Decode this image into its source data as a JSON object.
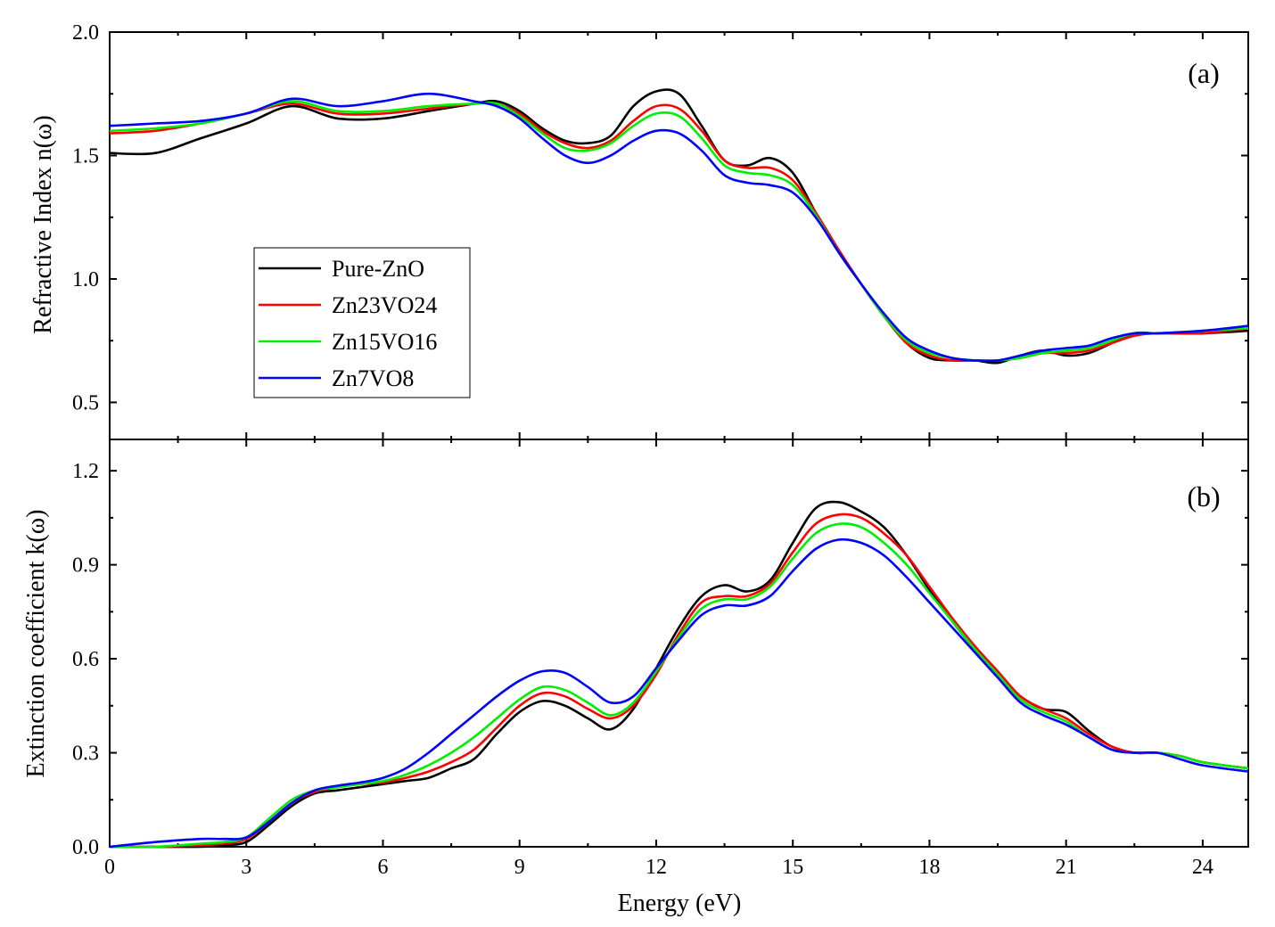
{
  "chart_data": [
    {
      "panel_label": "(a)",
      "type": "line",
      "xlabel": "",
      "ylabel": "Refractive Index n(ω)",
      "xlim": [
        0,
        25
      ],
      "ylim": [
        0.35,
        2.0
      ],
      "y_ticks": [
        "0.5",
        "1.0",
        "1.5",
        "2.0"
      ],
      "y_tick_values": [
        0.5,
        1.0,
        1.5,
        2.0
      ],
      "legend_placement": "center-left",
      "grid": false,
      "series": [
        {
          "name": "Pure-ZnO",
          "color": "#000000",
          "x": [
            0,
            1,
            2,
            3,
            4,
            5,
            6,
            7,
            8,
            8.5,
            9,
            9.5,
            10,
            10.5,
            11,
            11.5,
            12,
            12.5,
            13,
            13.5,
            14,
            14.5,
            15,
            15.5,
            16,
            16.5,
            17,
            17.5,
            18,
            18.5,
            19,
            19.5,
            20,
            20.5,
            21,
            21.5,
            22,
            22.5,
            23,
            24,
            25
          ],
          "y": [
            1.51,
            1.51,
            1.57,
            1.63,
            1.7,
            1.65,
            1.65,
            1.68,
            1.71,
            1.72,
            1.68,
            1.61,
            1.56,
            1.55,
            1.58,
            1.7,
            1.76,
            1.75,
            1.62,
            1.48,
            1.46,
            1.49,
            1.43,
            1.27,
            1.11,
            0.98,
            0.85,
            0.74,
            0.68,
            0.67,
            0.67,
            0.66,
            0.69,
            0.71,
            0.69,
            0.7,
            0.74,
            0.78,
            0.78,
            0.78,
            0.79
          ]
        },
        {
          "name": "Zn23VO24",
          "color": "#ff0000",
          "x": [
            0,
            1,
            2,
            3,
            4,
            5,
            6,
            7,
            8,
            8.5,
            9,
            9.5,
            10,
            10.5,
            11,
            11.5,
            12,
            12.5,
            13,
            13.5,
            14,
            14.5,
            15,
            15.5,
            16,
            16.5,
            17,
            17.5,
            18,
            18.5,
            19,
            19.5,
            20,
            20.5,
            21,
            21.5,
            22,
            22.5,
            23,
            24,
            25
          ],
          "y": [
            1.59,
            1.6,
            1.63,
            1.67,
            1.71,
            1.67,
            1.67,
            1.69,
            1.71,
            1.71,
            1.67,
            1.6,
            1.55,
            1.53,
            1.56,
            1.64,
            1.7,
            1.69,
            1.6,
            1.48,
            1.45,
            1.45,
            1.4,
            1.27,
            1.12,
            0.98,
            0.85,
            0.74,
            0.69,
            0.67,
            0.67,
            0.67,
            0.68,
            0.7,
            0.7,
            0.71,
            0.74,
            0.77,
            0.78,
            0.78,
            0.8
          ]
        },
        {
          "name": "Zn15VO16",
          "color": "#00ee00",
          "x": [
            0,
            1,
            2,
            3,
            4,
            5,
            6,
            7,
            8,
            8.5,
            9,
            9.5,
            10,
            10.5,
            11,
            11.5,
            12,
            12.5,
            13,
            13.5,
            14,
            14.5,
            15,
            15.5,
            16,
            16.5,
            17,
            17.5,
            18,
            18.5,
            19,
            19.5,
            20,
            20.5,
            21,
            21.5,
            22,
            22.5,
            23,
            24,
            25
          ],
          "y": [
            1.6,
            1.61,
            1.63,
            1.67,
            1.72,
            1.68,
            1.68,
            1.7,
            1.71,
            1.71,
            1.66,
            1.59,
            1.53,
            1.52,
            1.55,
            1.62,
            1.67,
            1.66,
            1.57,
            1.46,
            1.43,
            1.42,
            1.38,
            1.26,
            1.11,
            0.98,
            0.85,
            0.75,
            0.7,
            0.68,
            0.67,
            0.67,
            0.68,
            0.7,
            0.71,
            0.72,
            0.75,
            0.78,
            0.78,
            0.79,
            0.8
          ]
        },
        {
          "name": "Zn7VO8",
          "color": "#0000ff",
          "x": [
            0,
            1,
            2,
            3,
            4,
            5,
            6,
            7,
            8,
            8.5,
            9,
            9.5,
            10,
            10.5,
            11,
            11.5,
            12,
            12.5,
            13,
            13.5,
            14,
            14.5,
            15,
            15.5,
            16,
            16.5,
            17,
            17.5,
            18,
            18.5,
            19,
            19.5,
            20,
            20.5,
            21,
            21.5,
            22,
            22.5,
            23,
            24,
            25
          ],
          "y": [
            1.62,
            1.63,
            1.64,
            1.67,
            1.73,
            1.7,
            1.72,
            1.75,
            1.72,
            1.7,
            1.65,
            1.57,
            1.5,
            1.47,
            1.5,
            1.56,
            1.6,
            1.59,
            1.52,
            1.42,
            1.39,
            1.38,
            1.35,
            1.25,
            1.11,
            0.98,
            0.86,
            0.76,
            0.71,
            0.68,
            0.67,
            0.67,
            0.69,
            0.71,
            0.72,
            0.73,
            0.76,
            0.78,
            0.78,
            0.79,
            0.81
          ]
        }
      ]
    },
    {
      "panel_label": "(b)",
      "type": "line",
      "xlabel": "Energy (eV)",
      "ylabel": "Extinction coefficient k(ω)",
      "xlim": [
        0,
        25
      ],
      "ylim": [
        0.0,
        1.3
      ],
      "x_ticks": [
        "0",
        "3",
        "6",
        "9",
        "12",
        "15",
        "18",
        "21",
        "24"
      ],
      "x_tick_values": [
        0,
        3,
        6,
        9,
        12,
        15,
        18,
        21,
        24
      ],
      "y_ticks": [
        "0.0",
        "0.3",
        "0.6",
        "0.9",
        "1.2"
      ],
      "y_tick_values": [
        0.0,
        0.3,
        0.6,
        0.9,
        1.2
      ],
      "grid": false,
      "series": [
        {
          "name": "Pure-ZnO",
          "color": "#000000",
          "x": [
            0,
            1,
            2,
            2.5,
            3,
            3.5,
            4,
            4.5,
            5,
            5.5,
            6,
            6.5,
            7,
            7.5,
            8,
            8.5,
            9,
            9.5,
            10,
            10.5,
            11,
            11.5,
            12,
            12.5,
            13,
            13.5,
            14,
            14.5,
            15,
            15.5,
            16,
            16.5,
            17,
            17.5,
            18,
            18.5,
            19,
            19.5,
            20,
            20.5,
            21,
            21.5,
            22,
            22.5,
            23,
            23.5,
            24,
            25
          ],
          "y": [
            0.0,
            0.0,
            0.0,
            0.005,
            0.015,
            0.07,
            0.13,
            0.17,
            0.18,
            0.19,
            0.2,
            0.21,
            0.22,
            0.25,
            0.28,
            0.36,
            0.43,
            0.465,
            0.45,
            0.41,
            0.375,
            0.44,
            0.57,
            0.7,
            0.8,
            0.835,
            0.815,
            0.85,
            0.97,
            1.08,
            1.1,
            1.07,
            1.02,
            0.93,
            0.82,
            0.72,
            0.63,
            0.55,
            0.48,
            0.44,
            0.43,
            0.37,
            0.32,
            0.3,
            0.3,
            0.29,
            0.27,
            0.25
          ]
        },
        {
          "name": "Zn23VO24",
          "color": "#ff0000",
          "x": [
            0,
            1,
            2,
            2.5,
            3,
            3.5,
            4,
            4.5,
            5,
            5.5,
            6,
            6.5,
            7,
            7.5,
            8,
            8.5,
            9,
            9.5,
            10,
            10.5,
            11,
            11.5,
            12,
            12.5,
            13,
            13.5,
            14,
            14.5,
            15,
            15.5,
            16,
            16.5,
            17,
            17.5,
            18,
            18.5,
            19,
            19.5,
            20,
            20.5,
            21,
            21.5,
            22,
            22.5,
            23,
            23.5,
            24,
            25
          ],
          "y": [
            0.0,
            0.0,
            0.005,
            0.01,
            0.025,
            0.08,
            0.14,
            0.175,
            0.19,
            0.2,
            0.205,
            0.22,
            0.24,
            0.27,
            0.31,
            0.38,
            0.45,
            0.49,
            0.48,
            0.44,
            0.41,
            0.45,
            0.55,
            0.68,
            0.78,
            0.8,
            0.8,
            0.84,
            0.94,
            1.03,
            1.06,
            1.05,
            1.0,
            0.93,
            0.83,
            0.73,
            0.64,
            0.56,
            0.48,
            0.44,
            0.41,
            0.36,
            0.32,
            0.3,
            0.3,
            0.29,
            0.27,
            0.25
          ]
        },
        {
          "name": "Zn15VO16",
          "color": "#00ee00",
          "x": [
            0,
            1,
            2,
            2.5,
            3,
            3.5,
            4,
            4.5,
            5,
            5.5,
            6,
            6.5,
            7,
            7.5,
            8,
            8.5,
            9,
            9.5,
            10,
            10.5,
            11,
            11.5,
            12,
            12.5,
            13,
            13.5,
            14,
            14.5,
            15,
            15.5,
            16,
            16.5,
            17,
            17.5,
            18,
            18.5,
            19,
            19.5,
            20,
            20.5,
            21,
            21.5,
            22,
            22.5,
            23,
            23.5,
            24,
            25
          ],
          "y": [
            0.0,
            0.0,
            0.01,
            0.015,
            0.03,
            0.09,
            0.15,
            0.18,
            0.19,
            0.2,
            0.21,
            0.23,
            0.26,
            0.3,
            0.35,
            0.41,
            0.47,
            0.51,
            0.5,
            0.46,
            0.42,
            0.46,
            0.56,
            0.67,
            0.76,
            0.79,
            0.79,
            0.83,
            0.92,
            1.0,
            1.03,
            1.02,
            0.97,
            0.9,
            0.81,
            0.72,
            0.63,
            0.55,
            0.47,
            0.43,
            0.4,
            0.35,
            0.31,
            0.3,
            0.3,
            0.29,
            0.27,
            0.25
          ]
        },
        {
          "name": "Zn7VO8",
          "color": "#0000ff",
          "x": [
            0,
            1,
            2,
            2.5,
            3,
            3.5,
            4,
            4.5,
            5,
            5.5,
            6,
            6.5,
            7,
            7.5,
            8,
            8.5,
            9,
            9.5,
            10,
            10.5,
            11,
            11.5,
            12,
            12.5,
            13,
            13.5,
            14,
            14.5,
            15,
            15.5,
            16,
            16.5,
            17,
            17.5,
            18,
            18.5,
            19,
            19.5,
            20,
            20.5,
            21,
            21.5,
            22,
            22.5,
            23,
            23.5,
            24,
            25
          ],
          "y": [
            0.0,
            0.015,
            0.025,
            0.025,
            0.03,
            0.08,
            0.14,
            0.18,
            0.195,
            0.205,
            0.22,
            0.25,
            0.3,
            0.36,
            0.42,
            0.48,
            0.53,
            0.56,
            0.555,
            0.51,
            0.46,
            0.48,
            0.57,
            0.66,
            0.74,
            0.77,
            0.77,
            0.8,
            0.88,
            0.95,
            0.98,
            0.97,
            0.93,
            0.86,
            0.78,
            0.7,
            0.62,
            0.54,
            0.46,
            0.42,
            0.39,
            0.35,
            0.31,
            0.3,
            0.3,
            0.28,
            0.26,
            0.24
          ]
        }
      ]
    }
  ]
}
